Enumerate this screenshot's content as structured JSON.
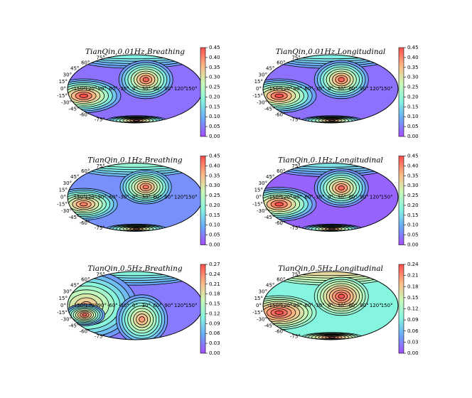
{
  "chart_data": [
    {
      "type": "contour",
      "projection": "mollweide",
      "colormap": "rainbow",
      "title": "TianQin,0.01Hz,Breathing",
      "clim": [
        0,
        0.45
      ],
      "cticks": [
        {
          "value": 0,
          "label": "0.00"
        },
        {
          "value": 0.05,
          "label": "0.05"
        },
        {
          "value": 0.1,
          "label": "0.10"
        },
        {
          "value": 0.15,
          "label": "0.15"
        },
        {
          "value": 0.2,
          "label": "0.20"
        },
        {
          "value": 0.25,
          "label": "0.25"
        },
        {
          "value": 0.3,
          "label": "0.30"
        },
        {
          "value": 0.35,
          "label": "0.35"
        },
        {
          "value": 0.4,
          "label": "0.40"
        },
        {
          "value": 0.45,
          "label": "0.45"
        }
      ],
      "lat_ticks": [
        {
          "value": 75,
          "label": "75°"
        },
        {
          "value": 60,
          "label": "60°"
        },
        {
          "value": 45,
          "label": "45°"
        },
        {
          "value": 30,
          "label": "30°"
        },
        {
          "value": 15,
          "label": "15°"
        },
        {
          "value": 0,
          "label": "0°"
        },
        {
          "value": -15,
          "label": "-15°"
        },
        {
          "value": -30,
          "label": "-30°"
        },
        {
          "value": -45,
          "label": "-45°"
        },
        {
          "value": -60,
          "label": "-60°"
        },
        {
          "value": -75,
          "label": "-75°"
        }
      ],
      "lon_ticks": [
        {
          "value": -150,
          "label": "-150°"
        },
        {
          "value": -120,
          "label": "-120°"
        },
        {
          "value": -90,
          "label": "-90°"
        },
        {
          "value": -60,
          "label": "-60°"
        },
        {
          "value": -30,
          "label": "-30°"
        },
        {
          "value": 0,
          "label": "0°"
        },
        {
          "value": 30,
          "label": "30°"
        },
        {
          "value": 60,
          "label": "60°"
        },
        {
          "value": 90,
          "label": "90°"
        },
        {
          "value": 120,
          "label": "120°"
        },
        {
          "value": 150,
          "label": "150°"
        }
      ]
    },
    {
      "type": "contour",
      "projection": "mollweide",
      "colormap": "rainbow",
      "title": "TianQin,0.01Hz,Longitudinal",
      "clim": [
        0,
        0.45
      ],
      "cticks": [
        {
          "value": 0,
          "label": "0.00"
        },
        {
          "value": 0.05,
          "label": "0.05"
        },
        {
          "value": 0.1,
          "label": "0.10"
        },
        {
          "value": 0.15,
          "label": "0.15"
        },
        {
          "value": 0.2,
          "label": "0.20"
        },
        {
          "value": 0.25,
          "label": "0.25"
        },
        {
          "value": 0.3,
          "label": "0.30"
        },
        {
          "value": 0.35,
          "label": "0.35"
        },
        {
          "value": 0.4,
          "label": "0.40"
        },
        {
          "value": 0.45,
          "label": "0.45"
        }
      ],
      "lat_ticks": [
        {
          "value": 75,
          "label": "75°"
        },
        {
          "value": 60,
          "label": "60°"
        },
        {
          "value": 45,
          "label": "45°"
        },
        {
          "value": 30,
          "label": "30°"
        },
        {
          "value": 15,
          "label": "15°"
        },
        {
          "value": 0,
          "label": "0°"
        },
        {
          "value": -15,
          "label": "-15°"
        },
        {
          "value": -30,
          "label": "-30°"
        },
        {
          "value": -45,
          "label": "-45°"
        },
        {
          "value": -60,
          "label": "-60°"
        },
        {
          "value": -75,
          "label": "-75°"
        }
      ],
      "lon_ticks": [
        {
          "value": -150,
          "label": "-150°"
        },
        {
          "value": -120,
          "label": "-120°"
        },
        {
          "value": -90,
          "label": "-90°"
        },
        {
          "value": -60,
          "label": "-60°"
        },
        {
          "value": -30,
          "label": "-30°"
        },
        {
          "value": 0,
          "label": "0°"
        },
        {
          "value": 30,
          "label": "30°"
        },
        {
          "value": 60,
          "label": "60°"
        },
        {
          "value": 90,
          "label": "90°"
        },
        {
          "value": 120,
          "label": "120°"
        },
        {
          "value": 150,
          "label": "150°"
        }
      ]
    },
    {
      "type": "contour",
      "projection": "mollweide",
      "colormap": "rainbow",
      "title": "TianQin,0.1Hz,Breathing",
      "clim": [
        0,
        0.45
      ],
      "cticks": [
        {
          "value": 0,
          "label": "0.00"
        },
        {
          "value": 0.05,
          "label": "0.05"
        },
        {
          "value": 0.1,
          "label": "0.10"
        },
        {
          "value": 0.15,
          "label": "0.15"
        },
        {
          "value": 0.2,
          "label": "0.20"
        },
        {
          "value": 0.25,
          "label": "0.25"
        },
        {
          "value": 0.3,
          "label": "0.30"
        },
        {
          "value": 0.35,
          "label": "0.35"
        },
        {
          "value": 0.4,
          "label": "0.40"
        },
        {
          "value": 0.45,
          "label": "0.45"
        }
      ],
      "lat_ticks": [
        {
          "value": 75,
          "label": "75°"
        },
        {
          "value": 60,
          "label": "60°"
        },
        {
          "value": 45,
          "label": "45°"
        },
        {
          "value": 30,
          "label": "30°"
        },
        {
          "value": 15,
          "label": "15°"
        },
        {
          "value": 0,
          "label": "0°"
        },
        {
          "value": -15,
          "label": "-15°"
        },
        {
          "value": -30,
          "label": "-30°"
        },
        {
          "value": -45,
          "label": "-45°"
        },
        {
          "value": -60,
          "label": "-60°"
        },
        {
          "value": -75,
          "label": "-75°"
        }
      ],
      "lon_ticks": [
        {
          "value": -150,
          "label": "-150°"
        },
        {
          "value": -120,
          "label": "-120°"
        },
        {
          "value": -90,
          "label": "-90°"
        },
        {
          "value": -60,
          "label": "-60°"
        },
        {
          "value": -30,
          "label": "-30°"
        },
        {
          "value": 0,
          "label": "0°"
        },
        {
          "value": 30,
          "label": "30°"
        },
        {
          "value": 60,
          "label": "60°"
        },
        {
          "value": 90,
          "label": "90°"
        },
        {
          "value": 120,
          "label": "120°"
        },
        {
          "value": 150,
          "label": "150°"
        }
      ]
    },
    {
      "type": "contour",
      "projection": "mollweide",
      "colormap": "rainbow",
      "title": "TianQin,0.1Hz,Longitudinal",
      "clim": [
        0,
        0.45
      ],
      "cticks": [
        {
          "value": 0,
          "label": "0.00"
        },
        {
          "value": 0.05,
          "label": "0.05"
        },
        {
          "value": 0.1,
          "label": "0.10"
        },
        {
          "value": 0.15,
          "label": "0.15"
        },
        {
          "value": 0.2,
          "label": "0.20"
        },
        {
          "value": 0.25,
          "label": "0.25"
        },
        {
          "value": 0.3,
          "label": "0.30"
        },
        {
          "value": 0.35,
          "label": "0.35"
        },
        {
          "value": 0.4,
          "label": "0.40"
        },
        {
          "value": 0.45,
          "label": "0.45"
        }
      ],
      "lat_ticks": [
        {
          "value": 75,
          "label": "75°"
        },
        {
          "value": 60,
          "label": "60°"
        },
        {
          "value": 45,
          "label": "45°"
        },
        {
          "value": 30,
          "label": "30°"
        },
        {
          "value": 15,
          "label": "15°"
        },
        {
          "value": 0,
          "label": "0°"
        },
        {
          "value": -15,
          "label": "-15°"
        },
        {
          "value": -30,
          "label": "-30°"
        },
        {
          "value": -45,
          "label": "-45°"
        },
        {
          "value": -60,
          "label": "-60°"
        },
        {
          "value": -75,
          "label": "-75°"
        }
      ],
      "lon_ticks": [
        {
          "value": -150,
          "label": "-150°"
        },
        {
          "value": -120,
          "label": "-120°"
        },
        {
          "value": -90,
          "label": "-90°"
        },
        {
          "value": -60,
          "label": "-60°"
        },
        {
          "value": -30,
          "label": "-30°"
        },
        {
          "value": 0,
          "label": "0°"
        },
        {
          "value": 30,
          "label": "30°"
        },
        {
          "value": 60,
          "label": "60°"
        },
        {
          "value": 90,
          "label": "90°"
        },
        {
          "value": 120,
          "label": "120°"
        },
        {
          "value": 150,
          "label": "150°"
        }
      ]
    },
    {
      "type": "contour",
      "projection": "mollweide",
      "colormap": "rainbow",
      "title": "TianQin,0.5Hz,Breathing",
      "clim": [
        0,
        0.27
      ],
      "cticks": [
        {
          "value": 0,
          "label": "0.00"
        },
        {
          "value": 0.03,
          "label": "0.03"
        },
        {
          "value": 0.06,
          "label": "0.06"
        },
        {
          "value": 0.09,
          "label": "0.09"
        },
        {
          "value": 0.12,
          "label": "0.12"
        },
        {
          "value": 0.15,
          "label": "0.15"
        },
        {
          "value": 0.18,
          "label": "0.18"
        },
        {
          "value": 0.21,
          "label": "0.21"
        },
        {
          "value": 0.24,
          "label": "0.24"
        },
        {
          "value": 0.27,
          "label": "0.27"
        }
      ],
      "lat_ticks": [
        {
          "value": 75,
          "label": "75°"
        },
        {
          "value": 60,
          "label": "60°"
        },
        {
          "value": 45,
          "label": "45°"
        },
        {
          "value": 30,
          "label": "30°"
        },
        {
          "value": 15,
          "label": "15°"
        },
        {
          "value": 0,
          "label": "0°"
        },
        {
          "value": -15,
          "label": "-15°"
        },
        {
          "value": -30,
          "label": "-30°"
        },
        {
          "value": -45,
          "label": "-45°"
        },
        {
          "value": -60,
          "label": "-60°"
        },
        {
          "value": -75,
          "label": "-75°"
        }
      ],
      "lon_ticks": [
        {
          "value": -150,
          "label": "-150°"
        },
        {
          "value": -120,
          "label": "-120°"
        },
        {
          "value": -90,
          "label": "-90°"
        },
        {
          "value": -60,
          "label": "-60°"
        },
        {
          "value": -30,
          "label": "-30°"
        },
        {
          "value": 0,
          "label": "0°"
        },
        {
          "value": 30,
          "label": "30°"
        },
        {
          "value": 60,
          "label": "60°"
        },
        {
          "value": 90,
          "label": "90°"
        },
        {
          "value": 120,
          "label": "120°"
        },
        {
          "value": 150,
          "label": "150°"
        }
      ]
    },
    {
      "type": "contour",
      "projection": "mollweide",
      "colormap": "rainbow",
      "title": "TianQin,0.5Hz,Longitudinal",
      "clim": [
        0,
        0.24
      ],
      "cticks": [
        {
          "value": 0,
          "label": "0.00"
        },
        {
          "value": 0.03,
          "label": "0.03"
        },
        {
          "value": 0.06,
          "label": "0.06"
        },
        {
          "value": 0.09,
          "label": "0.09"
        },
        {
          "value": 0.12,
          "label": "0.12"
        },
        {
          "value": 0.15,
          "label": "0.15"
        },
        {
          "value": 0.18,
          "label": "0.18"
        },
        {
          "value": 0.21,
          "label": "0.21"
        },
        {
          "value": 0.24,
          "label": "0.24"
        }
      ],
      "lat_ticks": [
        {
          "value": 75,
          "label": "75°"
        },
        {
          "value": 60,
          "label": "60°"
        },
        {
          "value": 45,
          "label": "45°"
        },
        {
          "value": 30,
          "label": "30°"
        },
        {
          "value": 15,
          "label": "15°"
        },
        {
          "value": 0,
          "label": "0°"
        },
        {
          "value": -15,
          "label": "-15°"
        },
        {
          "value": -30,
          "label": "-30°"
        },
        {
          "value": -45,
          "label": "-45°"
        },
        {
          "value": -60,
          "label": "-60°"
        },
        {
          "value": -75,
          "label": "-75°"
        }
      ],
      "lon_ticks": [
        {
          "value": -150,
          "label": "-150°"
        },
        {
          "value": -120,
          "label": "-120°"
        },
        {
          "value": -90,
          "label": "-90°"
        },
        {
          "value": -60,
          "label": "-60°"
        },
        {
          "value": -30,
          "label": "-30°"
        },
        {
          "value": 0,
          "label": "0°"
        },
        {
          "value": 30,
          "label": "30°"
        },
        {
          "value": 60,
          "label": "60°"
        },
        {
          "value": 90,
          "label": "90°"
        },
        {
          "value": 120,
          "label": "120°"
        },
        {
          "value": 150,
          "label": "150°"
        }
      ]
    }
  ]
}
